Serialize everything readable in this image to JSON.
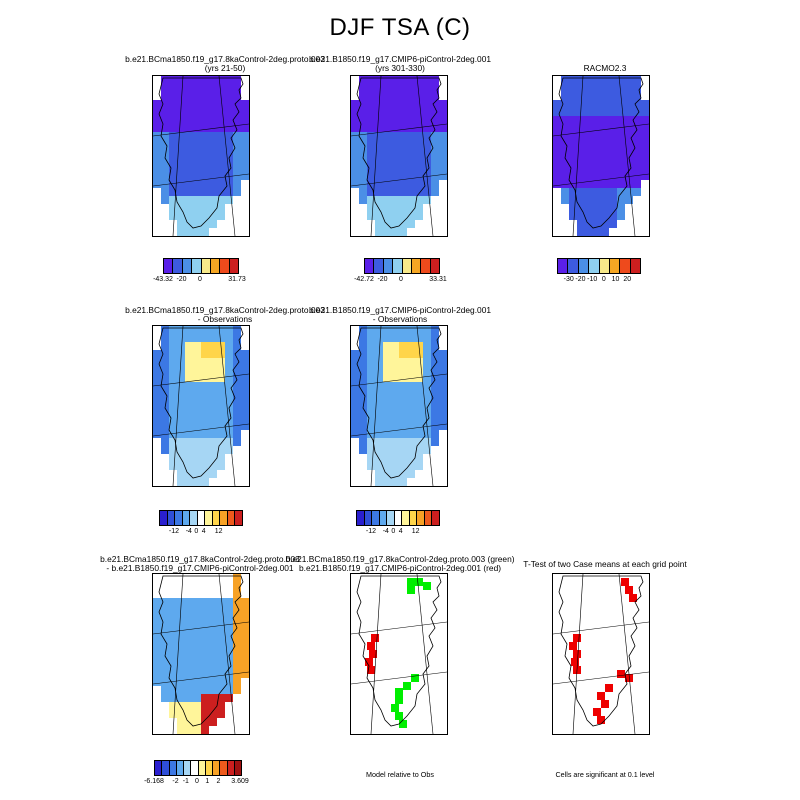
{
  "figure": {
    "title": "DJF TSA (C)"
  },
  "panels": {
    "p1": {
      "title_line1": "b.e21.BCma1850.f19_g17.8kaControl-2deg.proto.003",
      "title_line2": "(yrs 21-50)"
    },
    "p2": {
      "title_line1": "b.e21.B1850.f19_g17.CMIP6-piControl-2deg.001",
      "title_line2": "(yrs 301-330)"
    },
    "p3": {
      "title_line1": "RACMO2.3",
      "title_line2": ""
    },
    "p4": {
      "title_line1": "b.e21.BCma1850.f19_g17.8kaControl-2deg.proto.003",
      "title_line2": "- Observations"
    },
    "p5": {
      "title_line1": "b.e21.B1850.f19_g17.CMIP6-piControl-2deg.001",
      "title_line2": "- Observations"
    },
    "p7": {
      "title_line1": "b.e21.BCma1850.f19_g17.8kaControl-2deg.proto.003",
      "title_line2": "- b.e21.B1850.f19_g17.CMIP6-piControl-2deg.001"
    },
    "p8": {
      "title_line1": "b.e21.BCma1850.f19_g17.8kaControl-2deg.proto.003 (green)",
      "title_line2": "b.e21.B1850.f19_g17.CMIP6-piControl-2deg.001 (red)"
    },
    "p9": {
      "title_line1": "T-Test of two Case means at each grid point",
      "title_line2": ""
    }
  },
  "notes": {
    "p8": "Model relative to Obs",
    "p9": "Cells are significant at 0.1 level"
  },
  "colorbars": {
    "cb1": {
      "colors": [
        "#5a1fe8",
        "#3d5be0",
        "#4b8fe6",
        "#8fd0f0",
        "#f7e98a",
        "#f5a623",
        "#ee4a1c",
        "#cc1f1f"
      ],
      "ticks": [
        {
          "label": "-43.32",
          "frac": 0.0
        },
        {
          "label": "-20",
          "frac": 0.25
        },
        {
          "label": "0",
          "frac": 0.5
        },
        {
          "label": "31.73",
          "frac": 1.0
        }
      ]
    },
    "cb2": {
      "colors": [
        "#5a1fe8",
        "#3d5be0",
        "#4b8fe6",
        "#8fd0f0",
        "#f7e98a",
        "#f5a623",
        "#ee4a1c",
        "#cc1f1f"
      ],
      "ticks": [
        {
          "label": "-42.72",
          "frac": 0.0
        },
        {
          "label": "-20",
          "frac": 0.25
        },
        {
          "label": "0",
          "frac": 0.5
        },
        {
          "label": "33.31",
          "frac": 1.0
        }
      ]
    },
    "cb3": {
      "colors": [
        "#5a1fe8",
        "#3d5be0",
        "#4b8fe6",
        "#8fd0f0",
        "#f7e98a",
        "#f5a623",
        "#ee4a1c",
        "#cc1f1f"
      ],
      "ticks": [
        {
          "label": "-30",
          "frac": 0.143
        },
        {
          "label": "-20",
          "frac": 0.286
        },
        {
          "label": "-10",
          "frac": 0.429
        },
        {
          "label": "0",
          "frac": 0.571
        },
        {
          "label": "10",
          "frac": 0.714
        },
        {
          "label": "20",
          "frac": 0.857
        }
      ]
    },
    "cb4": {
      "colors": [
        "#2a1fcf",
        "#2f4fd8",
        "#3c78e4",
        "#5ea9ee",
        "#a6d6f4",
        "#ffffff",
        "#fff59a",
        "#ffd54a",
        "#f7a226",
        "#ee5a1c",
        "#cc1f1f"
      ],
      "ticks": [
        {
          "label": "-12",
          "frac": 0.182
        },
        {
          "label": "-4",
          "frac": 0.364
        },
        {
          "label": "0",
          "frac": 0.455
        },
        {
          "label": "4",
          "frac": 0.545
        },
        {
          "label": "12",
          "frac": 0.727
        }
      ]
    },
    "cb5": {
      "colors": [
        "#2a1fcf",
        "#2f4fd8",
        "#3c78e4",
        "#5ea9ee",
        "#a6d6f4",
        "#ffffff",
        "#fff59a",
        "#ffd54a",
        "#f7a226",
        "#ee5a1c",
        "#cc1f1f"
      ],
      "ticks": [
        {
          "label": "-12",
          "frac": 0.182
        },
        {
          "label": "-4",
          "frac": 0.364
        },
        {
          "label": "0",
          "frac": 0.455
        },
        {
          "label": "4",
          "frac": 0.545
        },
        {
          "label": "12",
          "frac": 0.727
        }
      ]
    },
    "cb7": {
      "colors": [
        "#2a1fcf",
        "#2f4fd8",
        "#3c78e4",
        "#5ea9ee",
        "#a6d6f4",
        "#ffffff",
        "#fff59a",
        "#ffd54a",
        "#f7a226",
        "#ee5a1c",
        "#cc1f1f",
        "#a01010"
      ],
      "ticks": [
        {
          "label": "-6.168",
          "frac": 0.0
        },
        {
          "label": "-2",
          "frac": 0.25
        },
        {
          "label": "-1",
          "frac": 0.37
        },
        {
          "label": "0",
          "frac": 0.5
        },
        {
          "label": "1",
          "frac": 0.62
        },
        {
          "label": "2",
          "frac": 0.75
        },
        {
          "label": "3.609",
          "frac": 1.0
        }
      ]
    }
  },
  "chart_data": [
    {
      "type": "heatmap",
      "title": "b.e21.BCma1850.f19_g17.8kaControl-2deg.proto.003 (yrs 21-50)",
      "crange": [
        -43.32,
        31.73
      ],
      "contour_levels": [
        -20,
        0
      ]
    },
    {
      "type": "heatmap",
      "title": "b.e21.B1850.f19_g17.CMIP6-piControl-2deg.001 (yrs 301-330)",
      "crange": [
        -42.72,
        33.31
      ],
      "contour_levels": [
        -20,
        0
      ]
    },
    {
      "type": "heatmap",
      "title": "RACMO2.3",
      "contour_levels": [
        -30,
        -20,
        -10,
        0,
        10,
        20
      ]
    },
    {
      "type": "heatmap",
      "title": "b.e21.BCma1850.f19_g17.8kaControl-2deg.proto.003 - Observations",
      "contour_levels": [
        -12,
        -4,
        0,
        4,
        12
      ]
    },
    {
      "type": "heatmap",
      "title": "b.e21.B1850.f19_g17.CMIP6-piControl-2deg.001 - Observations",
      "contour_levels": [
        -12,
        -4,
        0,
        4,
        12
      ]
    },
    {
      "type": "heatmap",
      "title": "b.e21.BCma1850.f19_g17.8kaControl-2deg.proto.003 - b.e21.B1850.f19_g17.CMIP6-piControl-2deg.001",
      "crange": [
        -6.168,
        3.609
      ],
      "contour_levels": [
        -2,
        -1,
        0,
        1,
        2
      ]
    },
    {
      "type": "heatmap",
      "title": "Model relative to Obs",
      "series": [
        {
          "name": "b.e21.BCma1850.f19_g17.8kaControl-2deg.proto.003",
          "color": "#00ee00"
        },
        {
          "name": "b.e21.B1850.f19_g17.CMIP6-piControl-2deg.001",
          "color": "#ee0000"
        }
      ]
    },
    {
      "type": "heatmap",
      "title": "T-Test of two Case means at each grid point",
      "significance_level": 0.1,
      "color": "#ee0000"
    }
  ]
}
